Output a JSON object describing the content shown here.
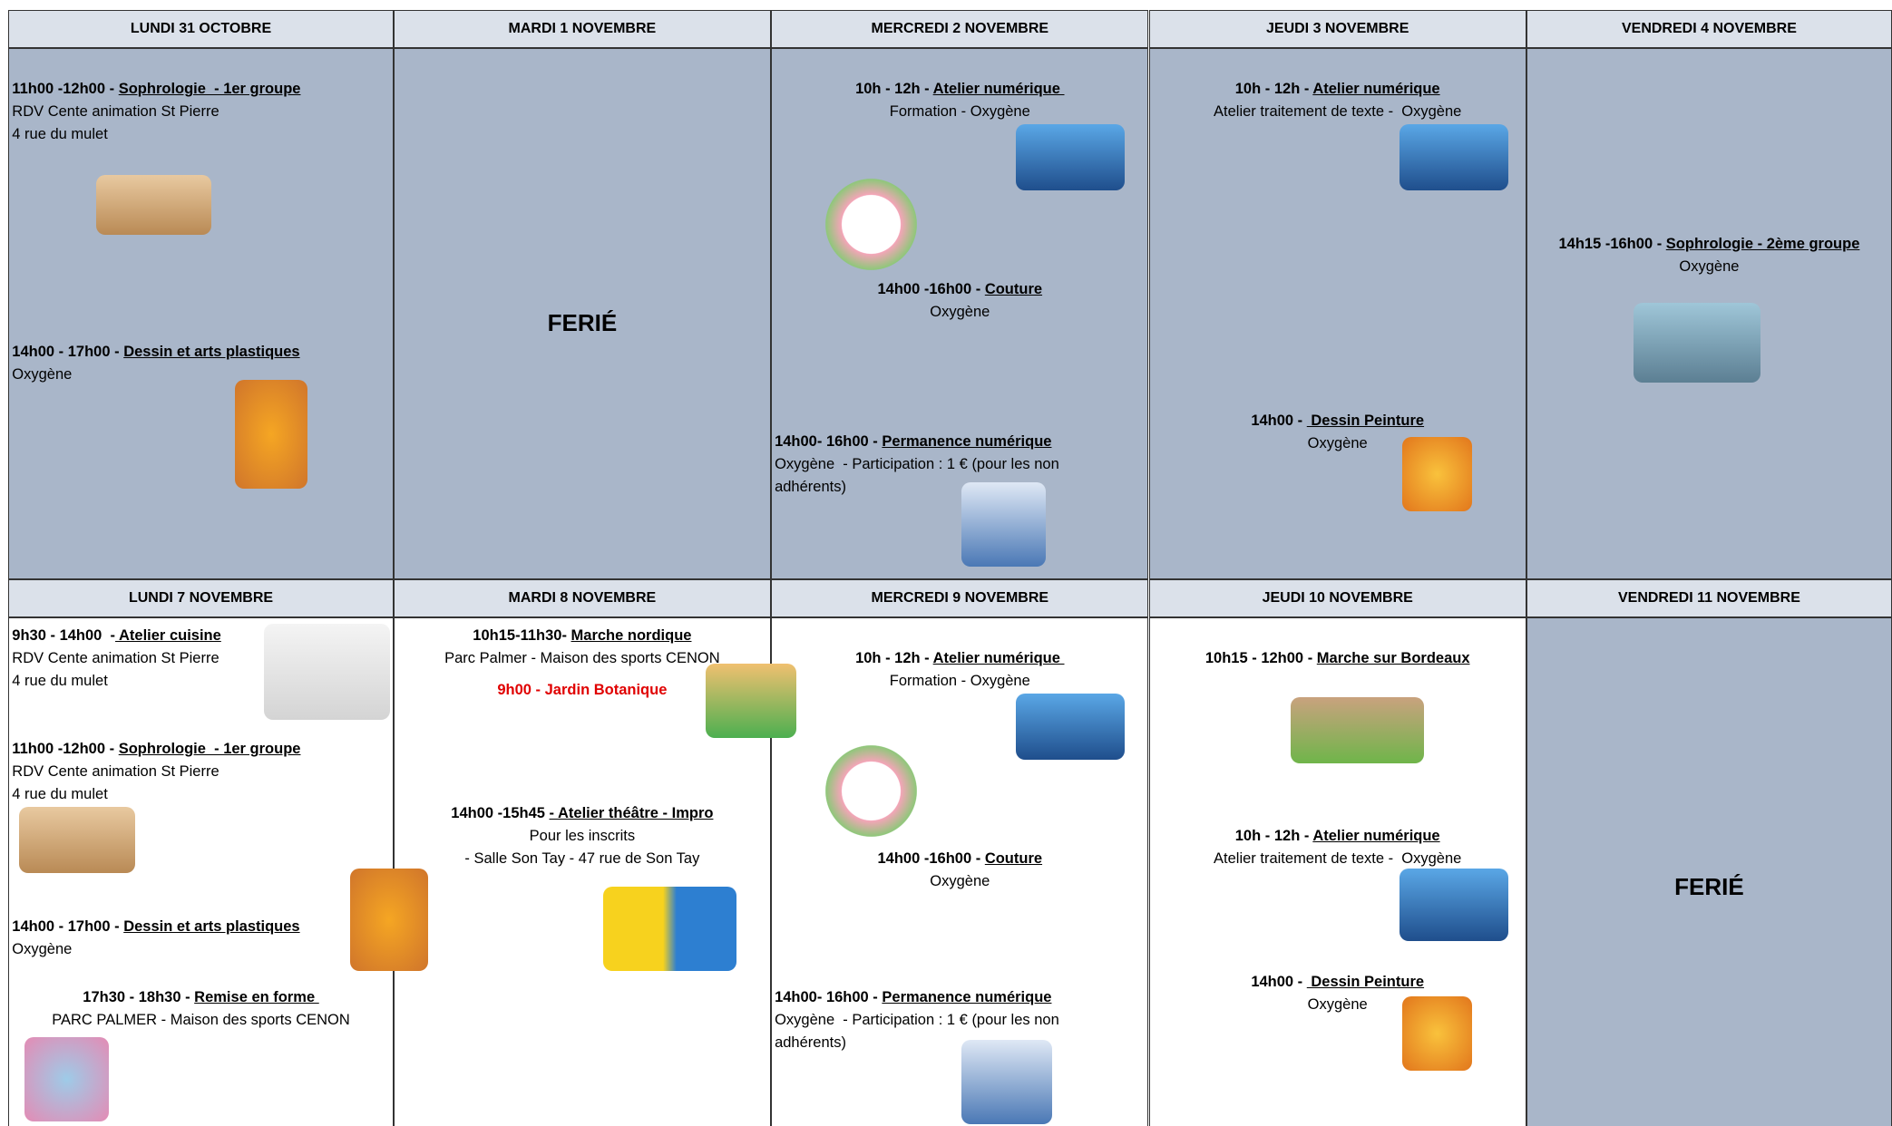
{
  "weeks": [
    {
      "days": [
        {
          "header": "LUNDI 31 OCTOBRE",
          "events": [
            {
              "time": "11h00 -12h00 - ",
              "title": "Sophrologie  - 1er groupe",
              "lines": [
                "RDV Cente animation St Pierre",
                "4 rue du mulet"
              ]
            },
            {
              "time": "14h00 - 17h00 - ",
              "title": "Dessin et arts plastiques",
              "lines": [
                "Oxygène"
              ]
            }
          ]
        },
        {
          "header": "MARDI 1 NOVEMBRE",
          "ferie": "FERIÉ",
          "events": []
        },
        {
          "header": "MERCREDI 2 NOVEMBRE",
          "events": [
            {
              "time": "10h - 12h - ",
              "title": "Atelier numérique ",
              "lines": [
                "Formation - Oxygène"
              ]
            },
            {
              "time": "14h00 -16h00 - ",
              "title": "Couture",
              "lines": [
                "Oxygène"
              ]
            },
            {
              "time": "14h00- 16h00 - ",
              "title": "Permanence numérique",
              "lines": [
                "Oxygène  - Participation : 1 € (pour les non",
                "adhérents)"
              ]
            }
          ]
        },
        {
          "header": "JEUDI 3 NOVEMBRE",
          "events": [
            {
              "time": "10h - 12h - ",
              "title": "Atelier numérique",
              "lines": [
                "Atelier traitement de texte -  Oxygène"
              ]
            },
            {
              "time": "14h00 - ",
              "title": " Dessin Peinture",
              "lines": [
                "Oxygène"
              ]
            }
          ]
        },
        {
          "header": "VENDREDI 4 NOVEMBRE",
          "events": [
            {
              "time": "14h15 -16h00 - ",
              "title": "Sophrologie - 2ème groupe",
              "lines": [
                "Oxygène"
              ]
            }
          ]
        }
      ]
    },
    {
      "days": [
        {
          "header": "LUNDI 7 NOVEMBRE",
          "events": [
            {
              "time": "9h30 - 14h00  -",
              "title": " Atelier cuisine",
              "lines": [
                "RDV Cente animation St Pierre",
                "4 rue du mulet"
              ]
            },
            {
              "time": "11h00 -12h00 - ",
              "title": "Sophrologie  - 1er groupe",
              "lines": [
                "RDV Cente animation St Pierre",
                "4 rue du mulet"
              ]
            },
            {
              "time": "14h00 - 17h00 - ",
              "title": "Dessin et arts plastiques",
              "lines": [
                "Oxygène"
              ]
            },
            {
              "time": "17h30 - 18h30 - ",
              "title": "Remise en forme ",
              "lines": [
                "PARC PALMER - Maison des sports CENON"
              ]
            }
          ]
        },
        {
          "header": "MARDI 8 NOVEMBRE",
          "events": [
            {
              "time": "10h15-11h30- ",
              "title": "Marche nordique",
              "lines": [
                "Parc Palmer - Maison des sports CENON"
              ],
              "note": "9h00 - Jardin Botanique"
            },
            {
              "time": "14h00 -15h45 ",
              "title": "- Atelier théâtre - Impro",
              "lines": [
                "Pour les inscrits",
                "- Salle Son Tay - 47 rue de Son Tay"
              ]
            }
          ]
        },
        {
          "header": "MERCREDI 9 NOVEMBRE",
          "events": [
            {
              "time": "10h - 12h - ",
              "title": "Atelier numérique ",
              "lines": [
                "Formation - Oxygène"
              ]
            },
            {
              "time": "14h00 -16h00 - ",
              "title": "Couture",
              "lines": [
                "Oxygène"
              ]
            },
            {
              "time": "14h00- 16h00 - ",
              "title": "Permanence numérique",
              "lines": [
                "Oxygène  - Participation : 1 € (pour les non",
                "adhérents)"
              ]
            }
          ]
        },
        {
          "header": "JEUDI 10 NOVEMBRE",
          "events": [
            {
              "time": "10h15 - 12h00 - ",
              "title": "Marche sur Bordeaux",
              "lines": []
            },
            {
              "time": "10h - 12h - ",
              "title": "Atelier numérique",
              "lines": [
                "Atelier traitement de texte -  Oxygène"
              ]
            },
            {
              "time": "14h00 - ",
              "title": " Dessin Peinture",
              "lines": [
                "Oxygène"
              ]
            }
          ]
        },
        {
          "header": "VENDREDI 11 NOVEMBRE",
          "ferie": "FERIÉ",
          "events": []
        }
      ]
    }
  ]
}
